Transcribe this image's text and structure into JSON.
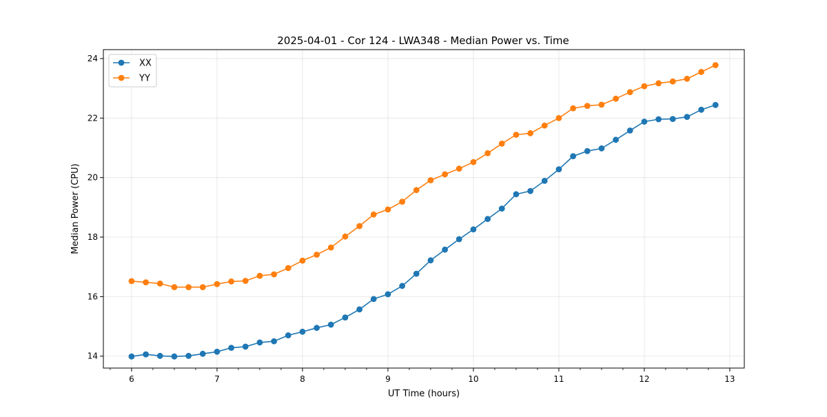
{
  "chart_data": {
    "type": "line",
    "title": "2025-04-01 - Cor 124 - LWA348 - Median Power vs. Time",
    "xlabel": "UT Time (hours)",
    "ylabel": "Median Power (CPU)",
    "xlim": [
      5.67,
      13.17
    ],
    "ylim": [
      13.6,
      24.3
    ],
    "xticks": [
      6,
      7,
      8,
      9,
      10,
      11,
      12,
      13
    ],
    "yticks": [
      14,
      16,
      18,
      20,
      22,
      24
    ],
    "grid": true,
    "legend_position": "top-left",
    "x": [
      6.0,
      6.167,
      6.333,
      6.5,
      6.667,
      6.833,
      7.0,
      7.167,
      7.333,
      7.5,
      7.667,
      7.833,
      8.0,
      8.167,
      8.333,
      8.5,
      8.667,
      8.833,
      9.0,
      9.167,
      9.333,
      9.5,
      9.667,
      9.833,
      10.0,
      10.167,
      10.333,
      10.5,
      10.667,
      10.833,
      11.0,
      11.167,
      11.333,
      11.5,
      11.667,
      11.833,
      12.0,
      12.167,
      12.333,
      12.5,
      12.667,
      12.833
    ],
    "series": [
      {
        "name": "XX",
        "color": "#1f77b4",
        "values": [
          13.99,
          14.06,
          14.01,
          13.99,
          14.01,
          14.08,
          14.15,
          14.28,
          14.32,
          14.46,
          14.5,
          14.7,
          14.82,
          14.95,
          15.06,
          15.3,
          15.57,
          15.92,
          16.08,
          16.36,
          16.77,
          17.22,
          17.58,
          17.93,
          18.26,
          18.61,
          18.96,
          19.44,
          19.55,
          19.89,
          20.28,
          20.72,
          20.89,
          20.98,
          21.27,
          21.58,
          21.88,
          21.96,
          21.97,
          22.04,
          22.28,
          22.44
        ]
      },
      {
        "name": "YY",
        "color": "#ff7f0e",
        "values": [
          16.52,
          16.48,
          16.44,
          16.32,
          16.32,
          16.32,
          16.42,
          16.51,
          16.53,
          16.7,
          16.75,
          16.96,
          17.21,
          17.41,
          17.65,
          18.02,
          18.37,
          18.76,
          18.93,
          19.19,
          19.58,
          19.91,
          20.11,
          20.3,
          20.52,
          20.82,
          21.14,
          21.44,
          21.49,
          21.75,
          22.0,
          22.33,
          22.41,
          22.45,
          22.65,
          22.87,
          23.07,
          23.17,
          23.23,
          23.32,
          23.55,
          23.78
        ]
      }
    ]
  }
}
